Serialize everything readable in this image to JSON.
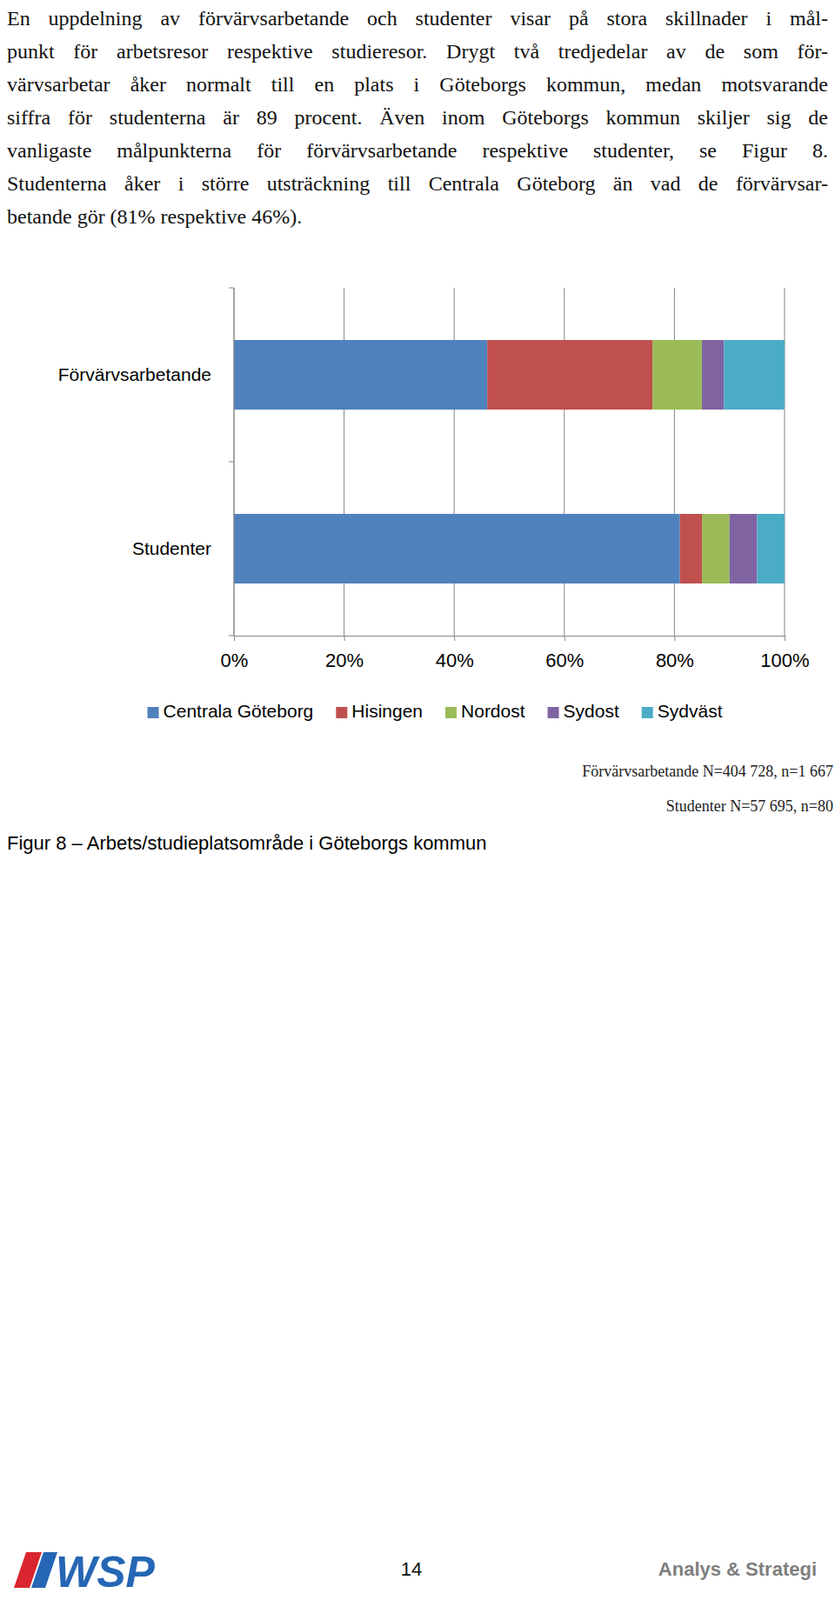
{
  "chart_data": {
    "type": "bar",
    "orientation": "horizontal",
    "stacked": true,
    "grid": true,
    "legend": "bottom",
    "title": "Figur 8 – Arbets/studieplatsområde i Göteborgs kommun",
    "categories": [
      "Förvärvsarbetande",
      "Studenter"
    ],
    "series": [
      {
        "name": "Centrala Göteborg",
        "color": "#4f81bd",
        "values": [
          46,
          81
        ]
      },
      {
        "name": "Hisingen",
        "color": "#c0504d",
        "values": [
          30,
          4
        ]
      },
      {
        "name": "Nordost",
        "color": "#9bbb59",
        "values": [
          9,
          5
        ]
      },
      {
        "name": "Sydost",
        "color": "#8064a2",
        "values": [
          4,
          5
        ]
      },
      {
        "name": "Sydväst",
        "color": "#4bacc6",
        "values": [
          11,
          5
        ]
      }
    ],
    "xlim": [
      0,
      100
    ],
    "xticks": [
      {
        "value": 0,
        "label": "0%"
      },
      {
        "value": 20,
        "label": "20%"
      },
      {
        "value": 40,
        "label": "40%"
      },
      {
        "value": 60,
        "label": "60%"
      },
      {
        "value": 80,
        "label": "80%"
      },
      {
        "value": 100,
        "label": "100%"
      }
    ],
    "annotations": [
      "Förvärvsarbetande N=404 728, n=1 667",
      "Studenter N=57 695, n=80"
    ]
  },
  "page": {
    "paragraph": [
      "En uppdelning av förvärvsarbetande och studenter visar på stora skillnader i mål-",
      "punkt för arbetsresor respektive studieresor. Drygt två tredjedelar av de som för-",
      "värvsarbetar åker normalt till en plats i Göteborgs kommun, medan motsvarande",
      "siffra för studenterna är 89 procent. Även inom Göteborgs kommun skiljer sig de",
      "vanligaste målpunkterna för förvärvsarbetande respektive studenter, se Figur 8.",
      "Studenterna åker i större utsträckning till Centrala Göteborg än vad de förvärvsar-",
      "betande gör (81% respektive 46%)."
    ],
    "footer": {
      "logo": "WSP",
      "page_number": "14",
      "text": "Analys & Strategi"
    }
  }
}
